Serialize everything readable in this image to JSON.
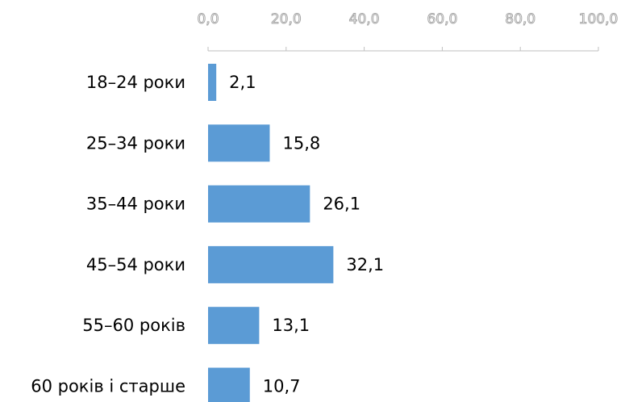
{
  "chart_data": {
    "type": "bar",
    "orientation": "horizontal",
    "categories": [
      "18–24 роки",
      "25–34 роки",
      "35–44 роки",
      "45–54 роки",
      "55–60 років",
      "60 років і старше"
    ],
    "values": [
      2.1,
      15.8,
      26.1,
      32.1,
      13.1,
      10.7
    ],
    "value_labels": [
      "2,1",
      "15,8",
      "26,1",
      "32,1",
      "13,1",
      "10,7"
    ],
    "color": "#5b9bd5",
    "xlim": [
      0,
      100
    ],
    "xticks": [
      {
        "value": 0,
        "label": "0,0"
      },
      {
        "value": 20,
        "label": "20,0"
      },
      {
        "value": 40,
        "label": "40,0"
      },
      {
        "value": 60,
        "label": "60,0"
      },
      {
        "value": 80,
        "label": "80,0"
      },
      {
        "value": 100,
        "label": "100,0"
      }
    ],
    "grid": false
  }
}
